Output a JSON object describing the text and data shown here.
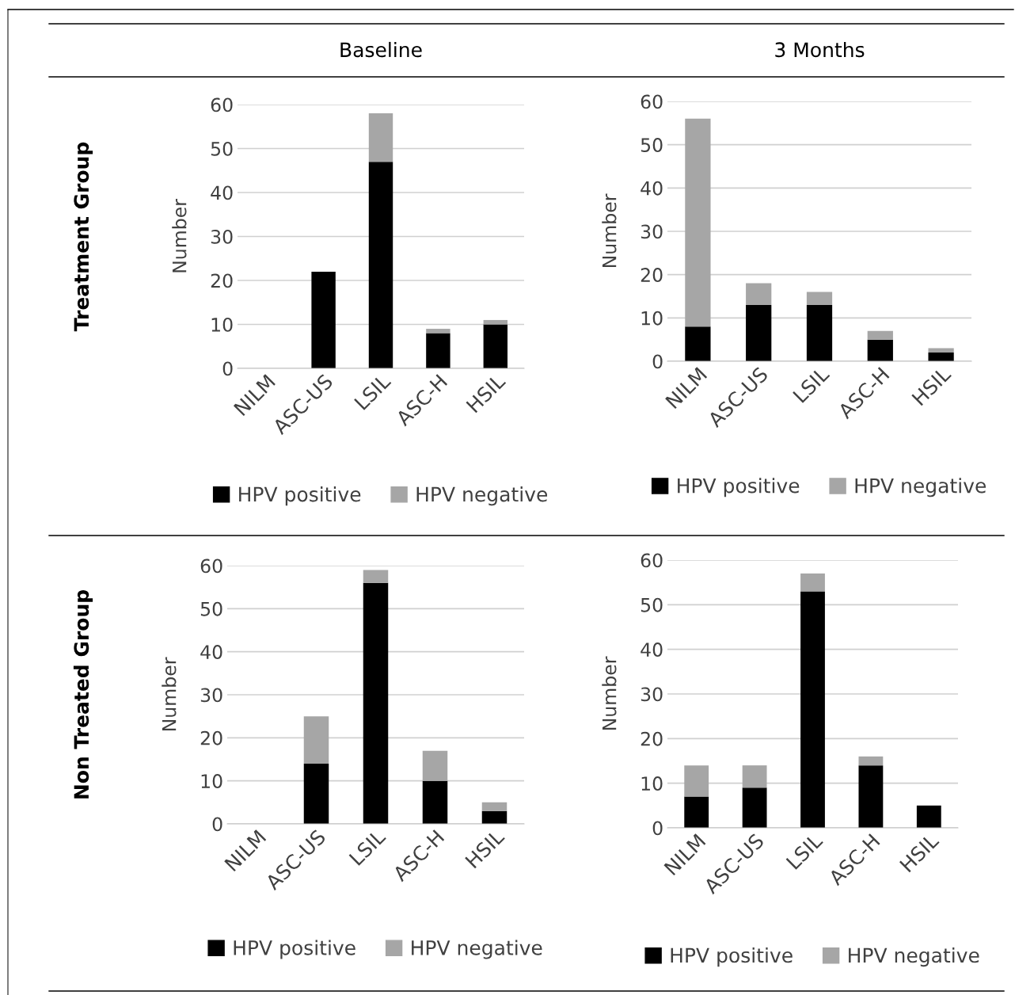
{
  "chart_data": [
    {
      "type": "bar",
      "stacked": true,
      "title": "Baseline",
      "annotations": [
        "Treatment Group"
      ],
      "ylabel": "Number",
      "categories": [
        "NILM",
        "ASC-US",
        "LSIL",
        "ASC-H",
        "HSIL"
      ],
      "ylim": [
        0,
        60
      ],
      "yticks": [
        0,
        10,
        20,
        30,
        40,
        50,
        60
      ],
      "grid": "y",
      "legend": "bottom",
      "series": [
        {
          "name": "HPV positive",
          "color": "#000000",
          "values": [
            0,
            22,
            47,
            8,
            10
          ]
        },
        {
          "name": "HPV negative",
          "color": "#a6a6a6",
          "values": [
            0,
            0,
            11,
            1,
            1
          ]
        }
      ]
    },
    {
      "type": "bar",
      "stacked": true,
      "title": "3 Months",
      "ylabel": "Number",
      "categories": [
        "NILM",
        "ASC-US",
        "LSIL",
        "ASC-H",
        "HSIL"
      ],
      "ylim": [
        0,
        60
      ],
      "yticks": [
        0,
        10,
        20,
        30,
        40,
        50,
        60
      ],
      "grid": "y",
      "legend": "bottom",
      "series": [
        {
          "name": "HPV positive",
          "color": "#000000",
          "values": [
            8,
            13,
            13,
            5,
            2
          ]
        },
        {
          "name": "HPV negative",
          "color": "#a6a6a6",
          "values": [
            48,
            5,
            3,
            2,
            1
          ]
        }
      ]
    },
    {
      "type": "bar",
      "stacked": true,
      "annotations": [
        "Non Treated Group"
      ],
      "ylabel": "Number",
      "categories": [
        "NILM",
        "ASC-US",
        "LSIL",
        "ASC-H",
        "HSIL"
      ],
      "ylim": [
        0,
        60
      ],
      "yticks": [
        0,
        10,
        20,
        30,
        40,
        50,
        60
      ],
      "grid": "y",
      "legend": "bottom",
      "series": [
        {
          "name": "HPV positive",
          "color": "#000000",
          "values": [
            0,
            14,
            56,
            10,
            3
          ]
        },
        {
          "name": "HPV negative",
          "color": "#a6a6a6",
          "values": [
            0,
            11,
            3,
            7,
            2
          ]
        }
      ]
    },
    {
      "type": "bar",
      "stacked": true,
      "ylabel": "Number",
      "categories": [
        "NILM",
        "ASC-US",
        "LSIL",
        "ASC-H",
        "HSIL"
      ],
      "ylim": [
        0,
        60
      ],
      "yticks": [
        0,
        10,
        20,
        30,
        40,
        50,
        60
      ],
      "grid": "y",
      "legend": "bottom",
      "series": [
        {
          "name": "HPV positive",
          "color": "#000000",
          "values": [
            7,
            9,
            53,
            14,
            5
          ]
        },
        {
          "name": "HPV negative",
          "color": "#a6a6a6",
          "values": [
            7,
            5,
            4,
            2,
            0
          ]
        }
      ]
    }
  ]
}
